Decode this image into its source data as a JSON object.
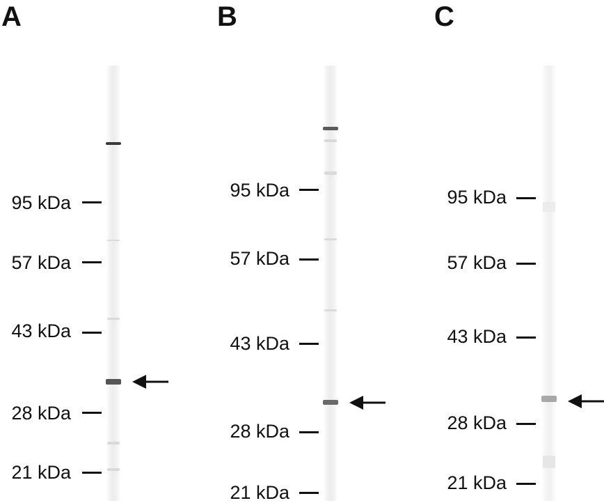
{
  "panels": [
    {
      "letter": "A",
      "markers": [
        "95 kDa",
        "57 kDa",
        "43 kDa",
        "28 kDa",
        "21 kDa"
      ],
      "arrow_icon": "left-arrow-icon"
    },
    {
      "letter": "B",
      "markers": [
        "95 kDa",
        "57 kDa",
        "43 kDa",
        "28 kDa",
        "21 kDa"
      ],
      "arrow_icon": "left-arrow-icon"
    },
    {
      "letter": "C",
      "markers": [
        "95 kDa",
        "57 kDa",
        "43 kDa",
        "28 kDa",
        "21 kDa"
      ],
      "arrow_icon": "left-arrow-icon"
    }
  ],
  "colors": {
    "text": "#111111",
    "band_dark": "#2a2a2a",
    "band_medium": "#5e5e5e",
    "band_light": "#9a9a9a",
    "lane_background": "#ececec"
  }
}
